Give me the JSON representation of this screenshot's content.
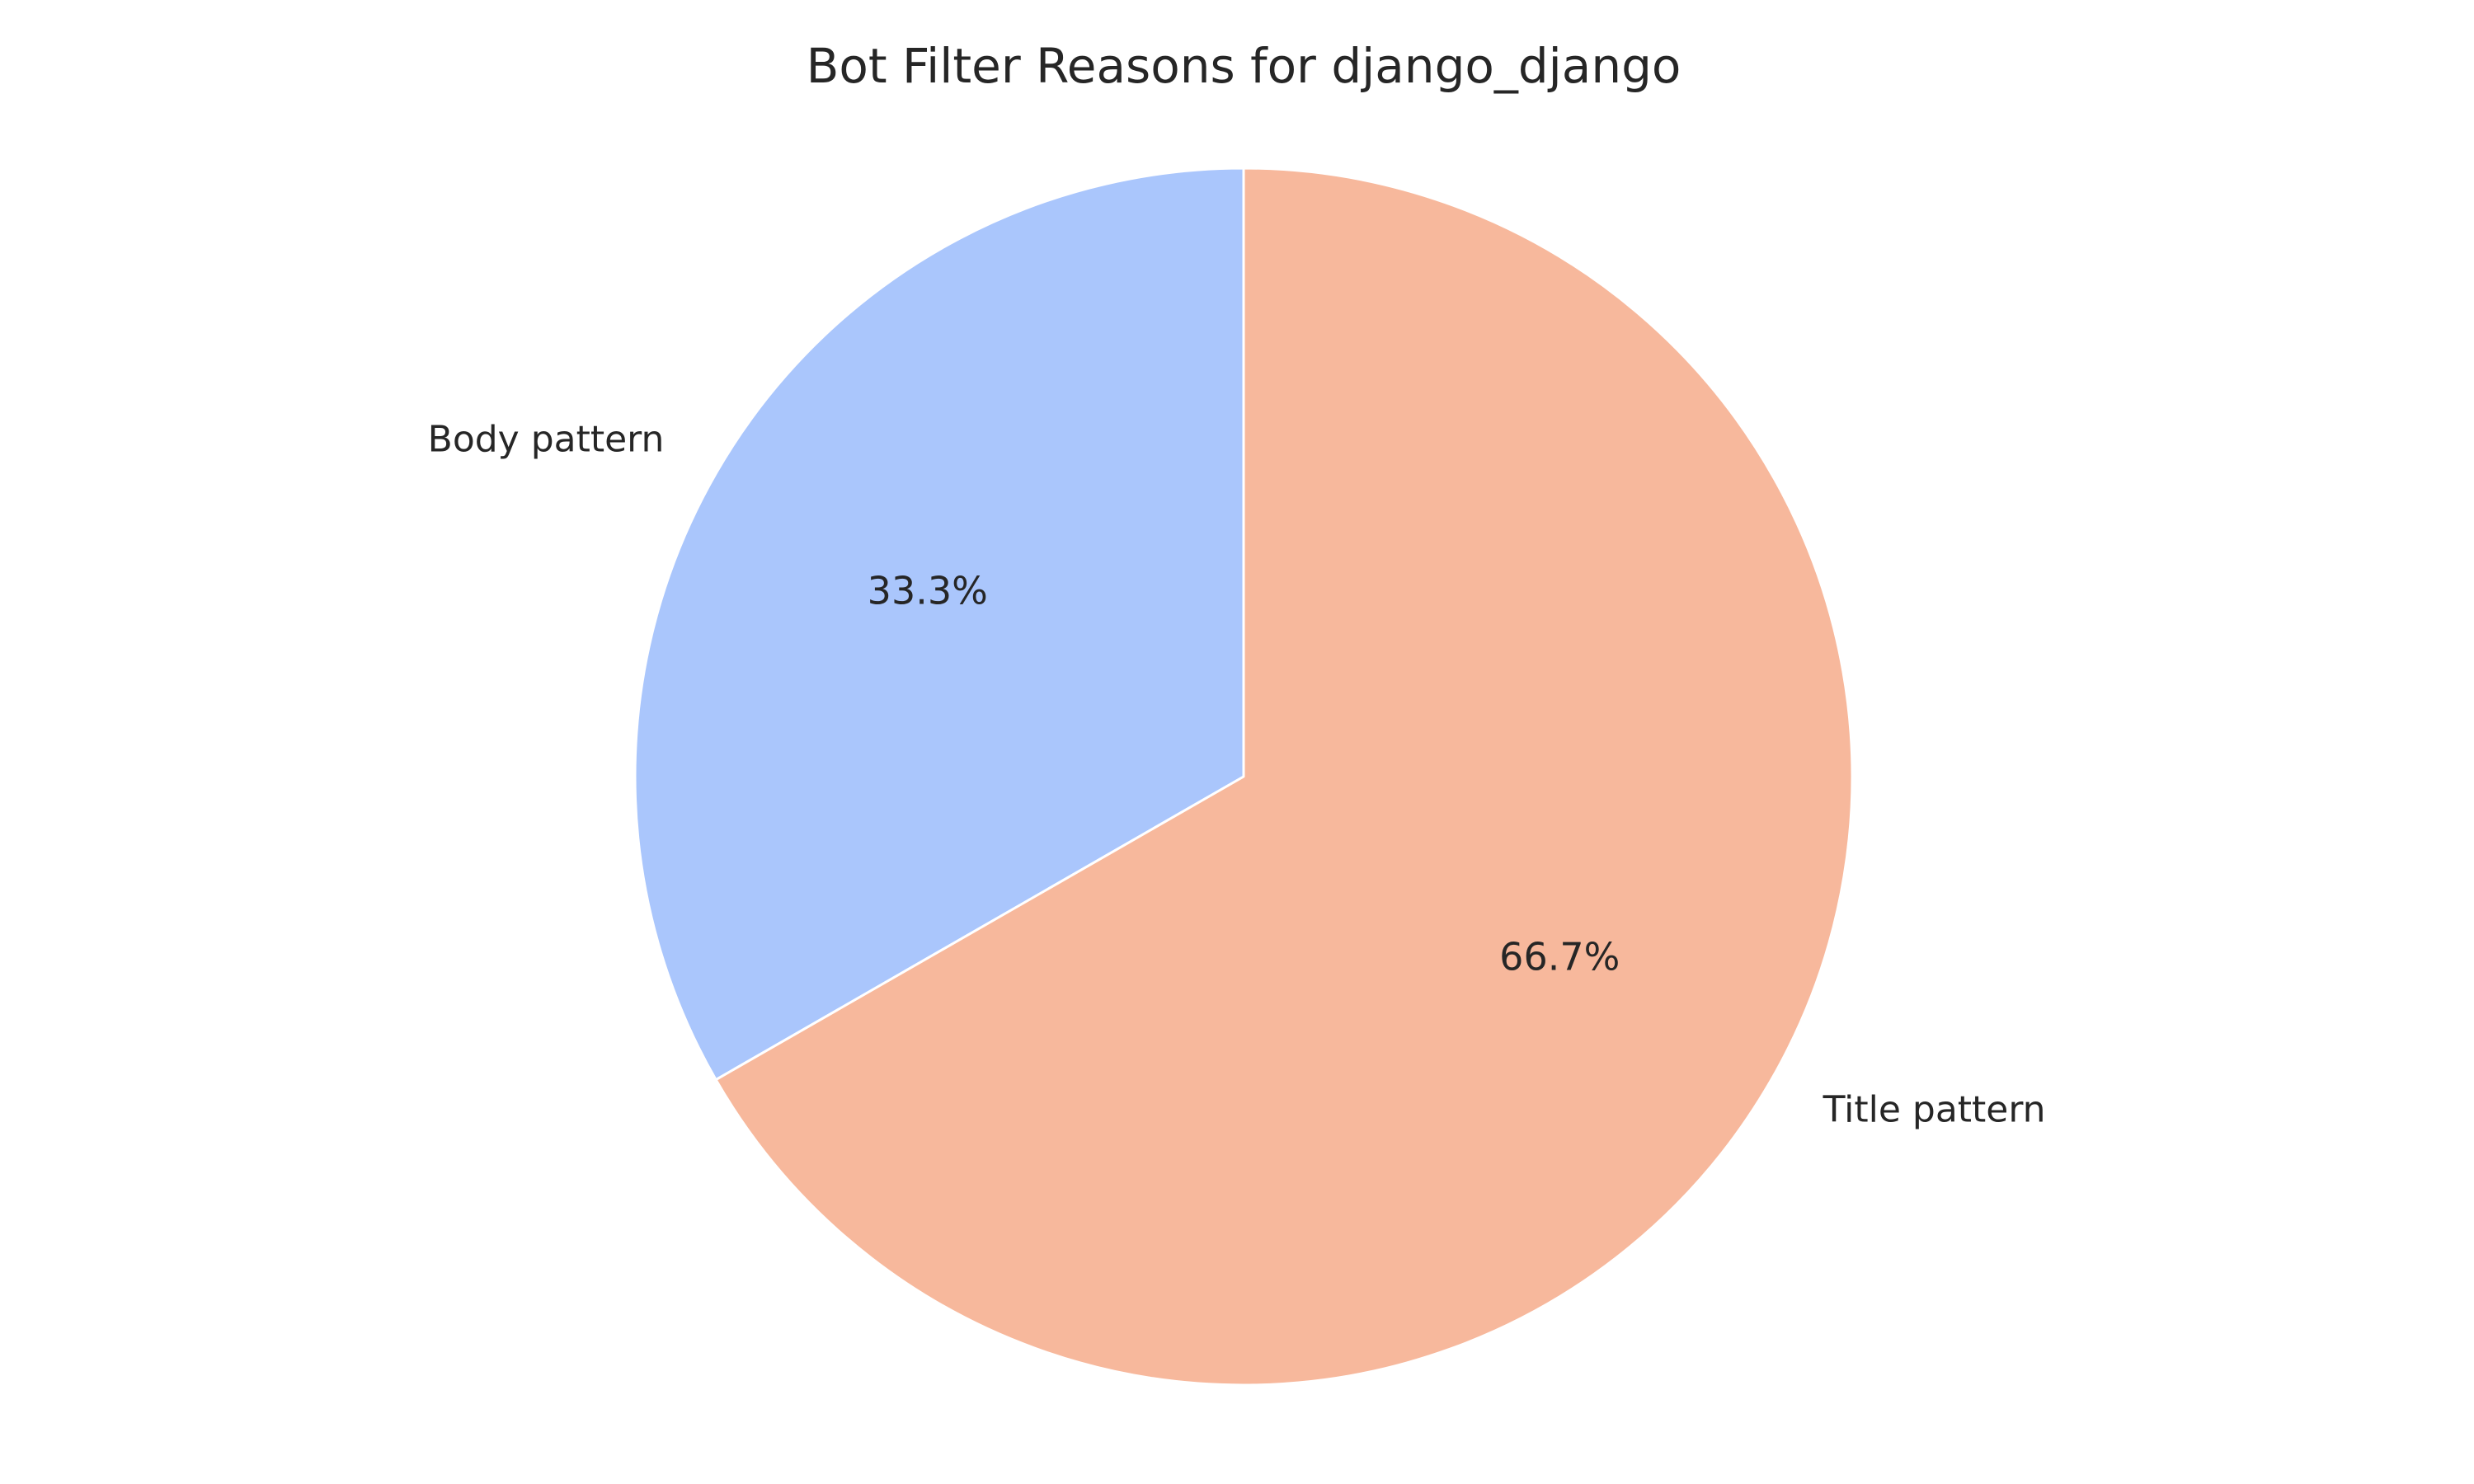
{
  "chart_data": {
    "type": "pie",
    "title": "Bot Filter Reasons for django_django",
    "slices": [
      {
        "label": "Body pattern",
        "value": 33.3,
        "pct_label": "33.3%",
        "color": "#aac6fc"
      },
      {
        "label": "Title pattern",
        "value": 66.7,
        "pct_label": "66.7%",
        "color": "#f7b89c"
      }
    ],
    "start_angle_deg": 90,
    "direction": "counterclockwise",
    "edge_color": "#ffffff",
    "legend": "none"
  }
}
